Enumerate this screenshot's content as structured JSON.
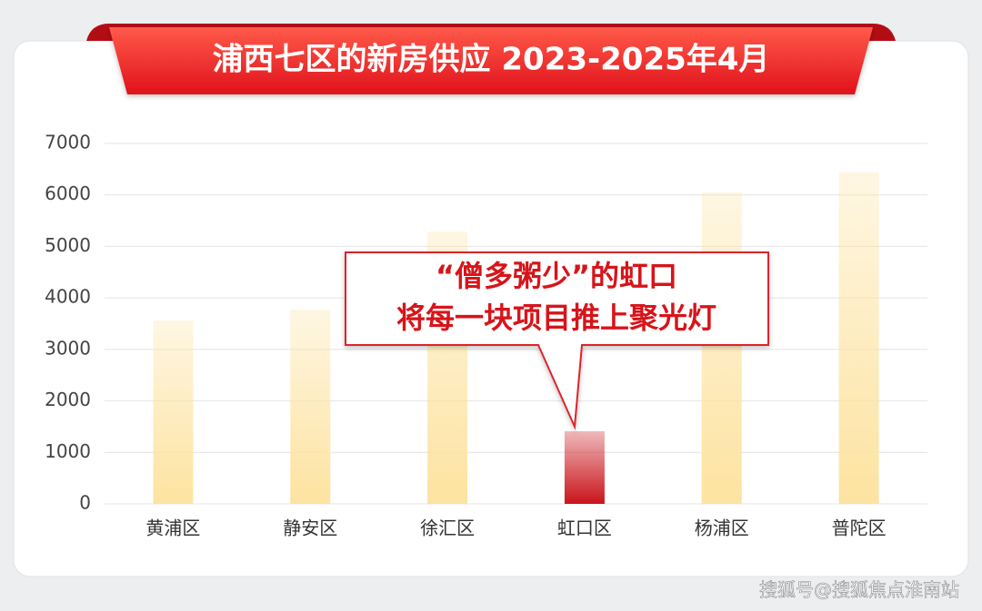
{
  "chart_data": {
    "type": "bar",
    "title": "浦西七区的新房供应 2023-2025年4月",
    "categories": [
      "黄浦区",
      "静安区",
      "徐汇区",
      "虹口区",
      "杨浦区",
      "普陀区"
    ],
    "values": [
      3560,
      3770,
      5290,
      1410,
      6050,
      6440
    ],
    "colors": [
      "#fde3a0",
      "#fde3a0",
      "#fde3a0",
      "#c9141a",
      "#fde3a0",
      "#fde3a0"
    ],
    "ylim": [
      0,
      7000
    ],
    "yticks": [
      0,
      1000,
      2000,
      3000,
      4000,
      5000,
      6000,
      7000
    ],
    "grid": true,
    "annotation": [
      "“僧多粥少”的虹口",
      "将每一块项目推上聚光灯"
    ],
    "watermark": "搜狐号@搜狐焦点淮南站"
  }
}
